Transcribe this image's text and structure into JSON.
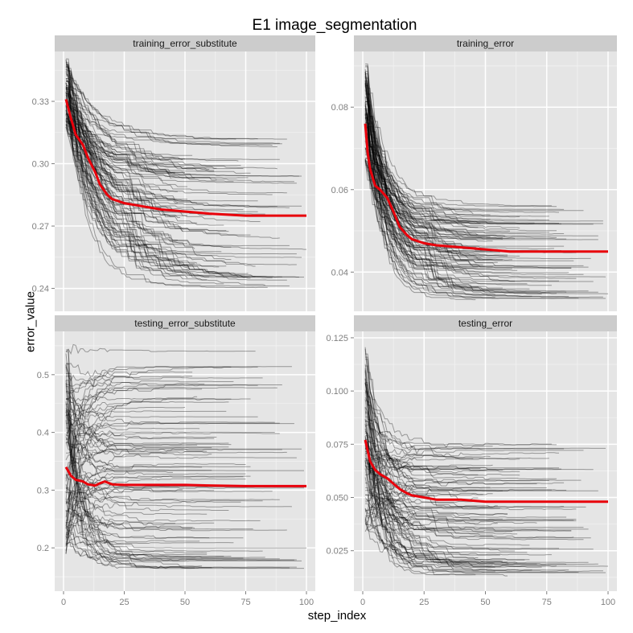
{
  "chart_data": {
    "type": "line",
    "title": "E1 image_segmentation",
    "xlabel": "step_index",
    "ylabel": "error_value",
    "xlim": [
      0,
      100
    ],
    "x_ticks": [
      0,
      25,
      50,
      75,
      100
    ],
    "grid": true,
    "legend": "none",
    "colors": {
      "panel_bg": "#e5e5e5",
      "strip_bg": "#cccccc",
      "grid": "#ffffff",
      "run": "#000000",
      "mean": "#e8000b"
    },
    "panels": [
      {
        "label": "training_error_substitute",
        "ylim": [
          0.229,
          0.354
        ],
        "y_ticks": [
          0.24,
          0.27,
          0.3,
          0.33
        ],
        "y_tick_labels": [
          "0.24",
          "0.27",
          "0.30",
          "0.33"
        ],
        "mean": {
          "x": [
            1,
            3,
            5,
            8,
            10,
            13,
            15,
            18,
            20,
            25,
            30,
            40,
            50,
            60,
            75,
            90,
            100
          ],
          "y": [
            0.331,
            0.322,
            0.314,
            0.309,
            0.303,
            0.296,
            0.29,
            0.285,
            0.283,
            0.281,
            0.28,
            0.278,
            0.277,
            0.276,
            0.275,
            0.275,
            0.275
          ]
        },
        "runs": {
          "count": 90,
          "start": [
            0.318,
            0.351
          ],
          "end": [
            0.239,
            0.312
          ],
          "decay": 13
        }
      },
      {
        "label": "training_error",
        "ylim": [
          0.0305,
          0.0935
        ],
        "y_ticks": [
          0.04,
          0.06,
          0.08
        ],
        "y_tick_labels": [
          "0.04",
          "0.06",
          "0.08"
        ],
        "mean": {
          "x": [
            1,
            2,
            3,
            5,
            7,
            10,
            13,
            15,
            18,
            20,
            25,
            30,
            40,
            50,
            60,
            75,
            90,
            100
          ],
          "y": [
            0.076,
            0.069,
            0.065,
            0.061,
            0.06,
            0.058,
            0.054,
            0.051,
            0.049,
            0.048,
            0.047,
            0.0465,
            0.046,
            0.0455,
            0.045,
            0.045,
            0.045,
            0.045
          ]
        },
        "runs": {
          "count": 90,
          "start": [
            0.066,
            0.091
          ],
          "end": [
            0.033,
            0.056
          ],
          "decay": 9
        }
      },
      {
        "label": "testing_error_substitute",
        "ylim": [
          0.125,
          0.575
        ],
        "y_ticks": [
          0.2,
          0.3,
          0.4,
          0.5
        ],
        "y_tick_labels": [
          "0.2",
          "0.3",
          "0.4",
          "0.5"
        ],
        "mean": {
          "x": [
            1,
            3,
            5,
            8,
            10,
            13,
            15,
            17,
            20,
            25,
            30,
            40,
            50,
            60,
            75,
            90,
            100
          ],
          "y": [
            0.34,
            0.325,
            0.318,
            0.315,
            0.31,
            0.308,
            0.312,
            0.315,
            0.31,
            0.309,
            0.309,
            0.309,
            0.309,
            0.308,
            0.307,
            0.307,
            0.307
          ]
        },
        "runs": {
          "count": 90,
          "start": [
            0.19,
            0.56
          ],
          "end": [
            0.16,
            0.55
          ],
          "decay": 6
        }
      },
      {
        "label": "testing_error",
        "ylim": [
          0.006,
          0.128
        ],
        "y_ticks": [
          0.025,
          0.05,
          0.075,
          0.1,
          0.125
        ],
        "y_tick_labels": [
          "0.025",
          "0.050",
          "0.075",
          "0.100",
          "0.125"
        ],
        "mean": {
          "x": [
            1,
            2,
            3,
            5,
            7,
            10,
            12,
            15,
            18,
            20,
            25,
            30,
            40,
            50,
            60,
            75,
            90,
            100
          ],
          "y": [
            0.077,
            0.072,
            0.067,
            0.063,
            0.061,
            0.059,
            0.057,
            0.054,
            0.052,
            0.051,
            0.05,
            0.049,
            0.049,
            0.048,
            0.048,
            0.048,
            0.048,
            0.048
          ]
        },
        "runs": {
          "count": 90,
          "start": [
            0.035,
            0.12
          ],
          "end": [
            0.013,
            0.075
          ],
          "decay": 7
        }
      }
    ]
  }
}
